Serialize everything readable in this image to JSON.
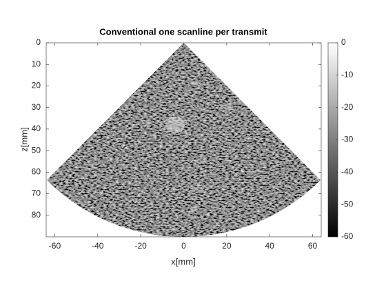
{
  "chart_data": {
    "type": "image",
    "title": "Conventional one scanline per transmit",
    "xlabel": "x[mm]",
    "ylabel": "z[mm]",
    "xlim": [
      -64,
      64
    ],
    "xticks": [
      -60,
      -40,
      -20,
      0,
      20,
      40,
      60
    ],
    "ylim": [
      0,
      90
    ],
    "yticks": [
      0,
      10,
      20,
      30,
      40,
      50,
      60,
      70,
      80
    ],
    "y_reversed": true,
    "colormap": "gray",
    "clim": [
      -60,
      0
    ],
    "cticks": [
      -60,
      -50,
      -40,
      -30,
      -20,
      -10,
      0
    ]
  }
}
